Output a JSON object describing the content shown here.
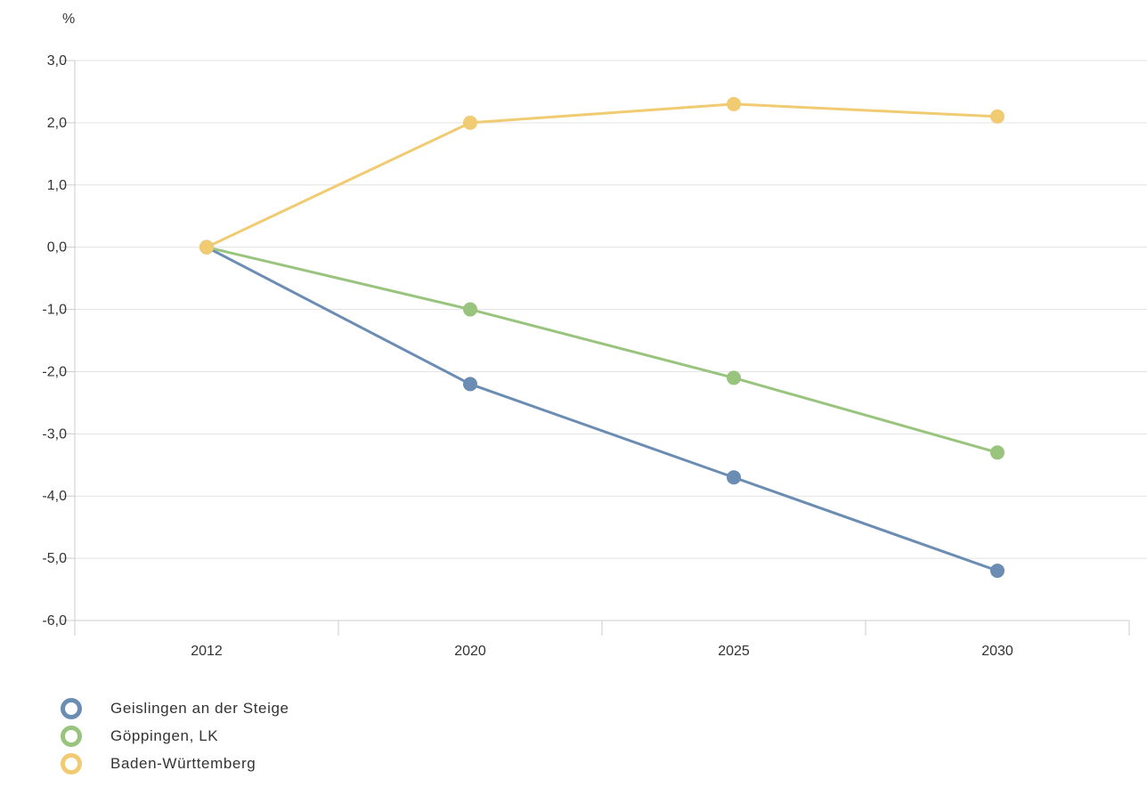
{
  "chart_data": {
    "type": "line",
    "unit_label": "%",
    "categories": [
      "2012",
      "2020",
      "2025",
      "2030"
    ],
    "ylim": [
      -6,
      3
    ],
    "y_ticks": [
      "3,0",
      "2,0",
      "1,0",
      "0,0",
      "-1,0",
      "-2,0",
      "-3,0",
      "-4,0",
      "-5,0",
      "-6,0"
    ],
    "y_tick_values": [
      3,
      2,
      1,
      0,
      -1,
      -2,
      -3,
      -4,
      -5,
      -6
    ],
    "grid": true,
    "legend_position": "bottom-left",
    "series": [
      {
        "name": "Geislingen an der Steige",
        "color": "#6b8cb3",
        "values": [
          0.0,
          -2.2,
          -3.7,
          -5.2
        ]
      },
      {
        "name": "Göppingen, LK",
        "color": "#99c47e",
        "values": [
          0.0,
          -1.0,
          -2.1,
          -3.3
        ]
      },
      {
        "name": "Baden-Württemberg",
        "color": "#f0cb72",
        "values": [
          0.0,
          2.0,
          2.3,
          2.1
        ]
      }
    ]
  }
}
